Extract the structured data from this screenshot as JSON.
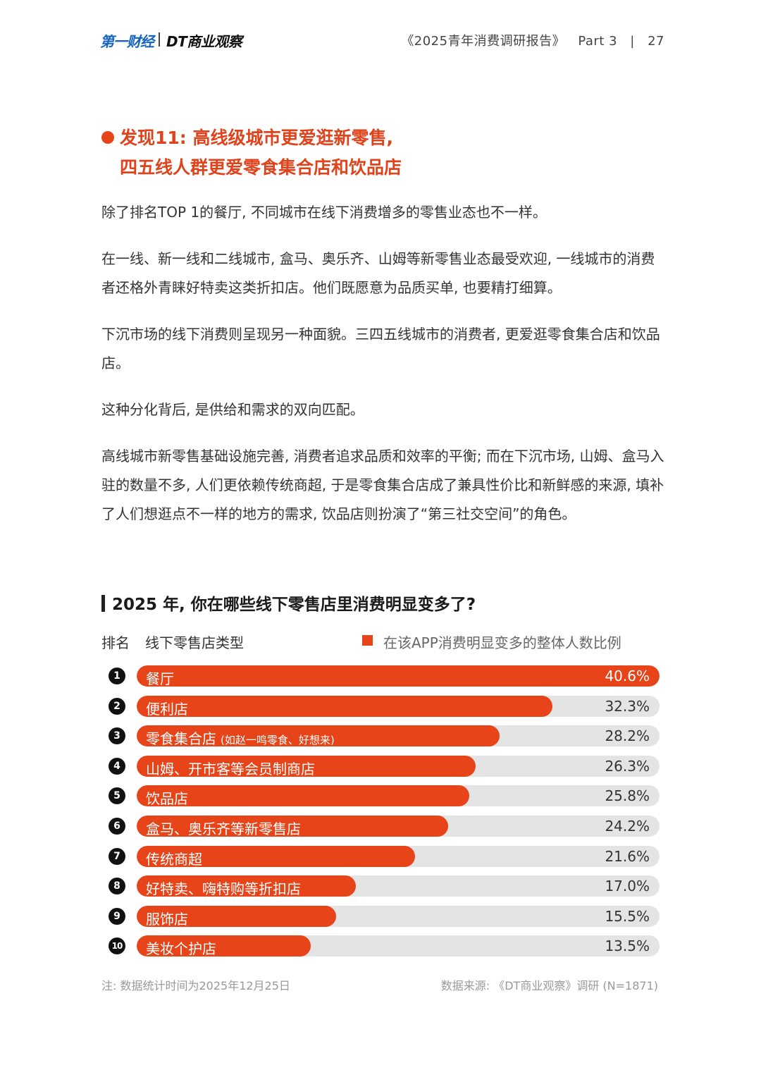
{
  "header": {
    "logo_left": "第一财经",
    "logo_right": "DT商业观察",
    "report_title": "《2025青年消费调研报告》",
    "part": "Part 3",
    "divider": "|",
    "page_number": "27"
  },
  "finding": {
    "line1": "发现11: 高线级城市更爱逛新零售,",
    "line2": "四五线人群更爱零食集合店和饮品店"
  },
  "paragraphs": [
    "除了排名TOP 1的餐厅, 不同城市在线下消费增多的零售业态也不一样。",
    "在一线、新一线和二线城市, 盒马、奥乐齐、山姆等新零售业态最受欢迎, 一线城市的消费者还格外青睐好特卖这类折扣店。他们既愿意为品质买单, 也要精打细算。",
    "下沉市场的线下消费则呈现另一种面貌。三四五线城市的消费者, 更爱逛零食集合店和饮品店。",
    "这种分化背后, 是供给和需求的双向匹配。",
    "高线城市新零售基础设施完善, 消费者追求品质和效率的平衡; 而在下沉市场, 山姆、盒马入驻的数量不多, 人们更依赖传统商超, 于是零食集合店成了兼具性价比和新鲜感的来源, 填补了人们想逛点不一样的地方的需求, 饮品店则扮演了“第三社交空间”的角色。"
  ],
  "chart_data": {
    "type": "bar",
    "title": "2025 年, 你在哪些线下零售店里消费明显变多了?",
    "rank_header": "排名",
    "category_header": "线下零售店类型",
    "legend": "在该APP消费明显变多的整体人数比例",
    "accent_color": "#e8441a",
    "track_color": "#e4e4e4",
    "xlim": [
      0,
      40.6
    ],
    "ranks": [
      "1",
      "2",
      "3",
      "4",
      "5",
      "6",
      "7",
      "8",
      "9",
      "10"
    ],
    "categories": [
      "餐厅",
      "便利店",
      "零食集合店",
      "山姆、开市客等会员制商店",
      "饮品店",
      "盒马、奥乐齐等新零售店",
      "传统商超",
      "好特卖、嗨特购等折扣店",
      "服饰店",
      "美妆个护店"
    ],
    "category_notes": [
      "",
      "",
      "(如赵一鸣零食、好想来)",
      "",
      "",
      "",
      "",
      "",
      "",
      ""
    ],
    "values": [
      40.6,
      32.3,
      28.2,
      26.3,
      25.8,
      24.2,
      21.6,
      17.0,
      15.5,
      13.5
    ],
    "value_labels": [
      "40.6%",
      "32.3%",
      "28.2%",
      "26.3%",
      "25.8%",
      "24.2%",
      "21.6%",
      "17.0%",
      "15.5%",
      "13.5%"
    ]
  },
  "footnotes": {
    "note": "注: 数据统计时间为2025年12月25日",
    "source": "数据来源: 《DT商业观察》调研 (N=1871)"
  }
}
